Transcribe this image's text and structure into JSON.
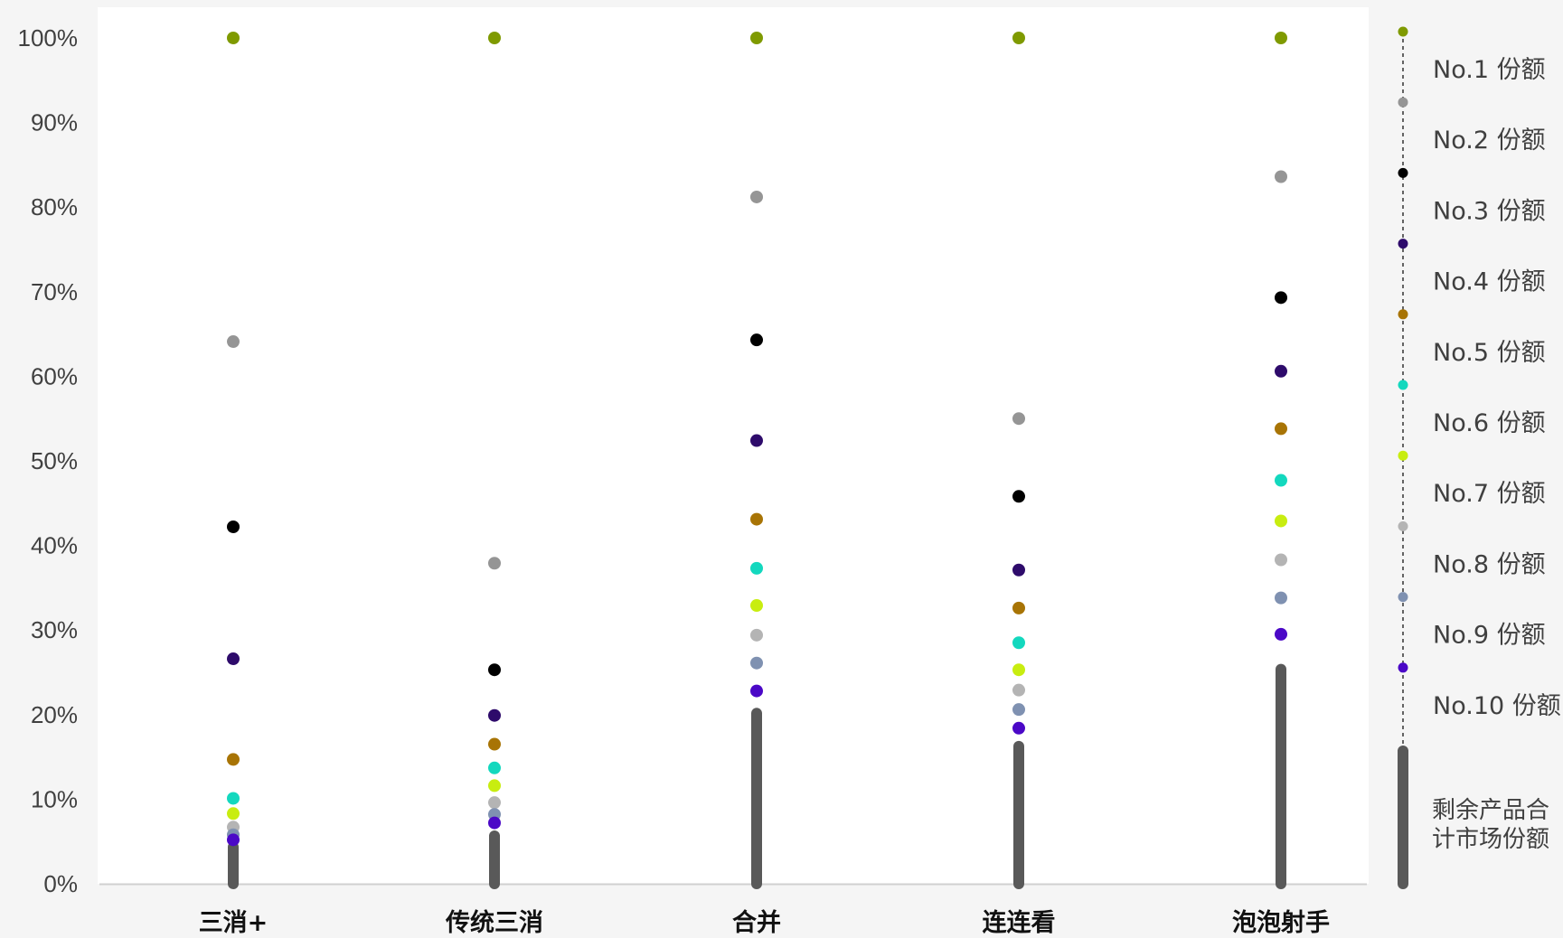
{
  "chart_data": {
    "type": "scatter",
    "categories": [
      "三消+",
      "传统三消",
      "合并",
      "连连看",
      "泡泡射手"
    ],
    "yticks": [
      "0%",
      "10%",
      "20%",
      "30%",
      "40%",
      "50%",
      "60%",
      "70%",
      "80%",
      "90%",
      "100%"
    ],
    "ylim": [
      0,
      100
    ],
    "rest_label_lines": [
      "剩余产品合",
      "计市场份额"
    ],
    "rest_color": "#595959",
    "rest_values": [
      5.0,
      6.3,
      20.8,
      16.9,
      26.0
    ],
    "series": [
      {
        "name": "No.1 份额",
        "color": "#7f9a00",
        "values": [
          100.0,
          100.0,
          100.0,
          100.0,
          100.0
        ]
      },
      {
        "name": "No.2 份额",
        "color": "#959595",
        "values": [
          64.1,
          37.9,
          81.2,
          55.0,
          83.6
        ]
      },
      {
        "name": "No.3 份额",
        "color": "#000000",
        "values": [
          42.2,
          25.3,
          64.3,
          45.8,
          69.3
        ]
      },
      {
        "name": "No.4 份额",
        "color": "#2e0b6b",
        "values": [
          26.6,
          19.9,
          52.4,
          37.1,
          60.6
        ]
      },
      {
        "name": "No.5 份额",
        "color": "#a87405",
        "values": [
          14.7,
          16.5,
          43.1,
          32.6,
          53.8
        ]
      },
      {
        "name": "No.6 份额",
        "color": "#13d8be",
        "values": [
          10.1,
          13.7,
          37.3,
          28.5,
          47.7
        ]
      },
      {
        "name": "No.7 份额",
        "color": "#c8ed10",
        "values": [
          8.3,
          11.6,
          32.9,
          25.3,
          42.9
        ]
      },
      {
        "name": "No.8 份额",
        "color": "#b4b4b4",
        "values": [
          6.7,
          9.6,
          29.4,
          22.9,
          38.3
        ]
      },
      {
        "name": "No.9 份额",
        "color": "#7f91b1",
        "values": [
          5.8,
          8.2,
          26.1,
          20.6,
          33.8
        ]
      },
      {
        "name": "No.10 份额",
        "color": "#4b08c7",
        "values": [
          5.2,
          7.2,
          22.8,
          18.4,
          29.5
        ]
      }
    ]
  }
}
